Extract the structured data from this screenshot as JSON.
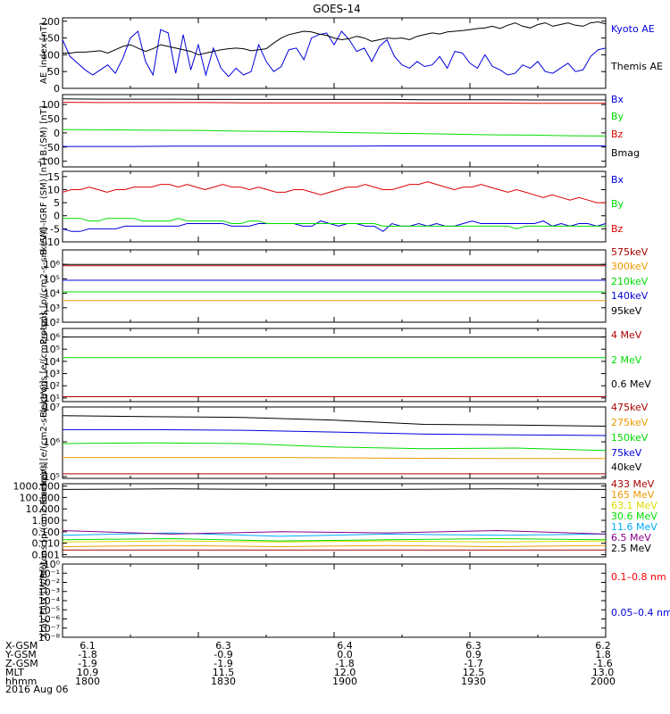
{
  "title": "GOES-14",
  "colors": {
    "black": "#000000",
    "blue": "#0000dd",
    "green": "#00dd00",
    "red": "#dd0000",
    "darkred": "#aa0000",
    "orange": "#ee9900",
    "yellow": "#dddd00",
    "cyan": "#00aaff",
    "purple": "#880088",
    "brightred": "#ff0000"
  },
  "chart_data": {
    "type": "line",
    "title": "GOES-14",
    "time_axis": {
      "ticks": [
        "1800",
        "1830",
        "1900",
        "1930",
        "2000"
      ],
      "range": [
        1800,
        2000
      ]
    },
    "orbit_table": {
      "date": "2016 Aug 06",
      "rows": [
        {
          "label": "X-GSM",
          "values": [
            "6.1",
            "6.3",
            "6.4",
            "6.3",
            "6.2"
          ]
        },
        {
          "label": "Y-GSM",
          "values": [
            "-1.8",
            "-0.9",
            "0.0",
            "0.9",
            "1.8"
          ]
        },
        {
          "label": "Z-GSM",
          "values": [
            "-1.9",
            "-1.9",
            "-1.8",
            "-1.7",
            "-1.6"
          ]
        },
        {
          "label": "MLT",
          "values": [
            "10.9",
            "11.5",
            "12.0",
            "12.5",
            "13.0"
          ]
        },
        {
          "label": "hhmm",
          "values": [
            "1800",
            "1830",
            "1900",
            "1930",
            "2000"
          ]
        }
      ]
    },
    "panels": [
      {
        "ylabel": "AE_index [nT]",
        "scale": "linear",
        "ylim": [
          0,
          210
        ],
        "ticks": [
          0,
          50,
          100,
          150,
          200
        ],
        "tick_labels": [
          "0",
          "50",
          "100",
          "150",
          "200"
        ],
        "series": [
          {
            "name": "Kyoto AE",
            "color": "blue",
            "values": [
              145,
              95,
              75,
              55,
              40,
              55,
              70,
              45,
              90,
              150,
              170,
              80,
              40,
              175,
              165,
              45,
              160,
              55,
              130,
              40,
              120,
              60,
              35,
              60,
              40,
              50,
              130,
              80,
              50,
              65,
              115,
              120,
              85,
              150,
              160,
              165,
              130,
              170,
              145,
              110,
              120,
              80,
              125,
              145,
              95,
              70,
              60,
              80,
              65,
              70,
              95,
              60,
              110,
              105,
              75,
              60,
              100,
              65,
              55,
              40,
              45,
              70,
              60,
              80,
              50,
              45,
              60,
              75,
              50,
              55,
              95,
              115,
              120
            ]
          },
          {
            "name": "Themis AE",
            "color": "black",
            "values": [
              105,
              105,
              108,
              108,
              110,
              112,
              105,
              115,
              125,
              130,
              120,
              110,
              118,
              130,
              125,
              120,
              115,
              110,
              100,
              105,
              110,
              115,
              118,
              120,
              118,
              112,
              115,
              118,
              135,
              150,
              160,
              165,
              170,
              168,
              162,
              158,
              150,
              145,
              148,
              155,
              150,
              140,
              145,
              150,
              148,
              150,
              145,
              155,
              160,
              165,
              162,
              168,
              170,
              172,
              175,
              178,
              180,
              185,
              178,
              188,
              195,
              185,
              180,
              190,
              195,
              185,
              190,
              195,
              188,
              185,
              195,
              198,
              192
            ]
          }
        ]
      },
      {
        "ylabel": "B (SM) [nT]",
        "scale": "linear",
        "ylim": [
          -120,
          135
        ],
        "ticks": [
          -100,
          -50,
          0,
          50,
          100
        ],
        "tick_labels": [
          "-100",
          "-50",
          "0",
          "50",
          "100"
        ],
        "series": [
          {
            "name": "Bx",
            "color": "blue",
            "values": [
              -48,
              -48,
              -48,
              -47,
              -47,
              -47,
              -47,
              -47,
              -47,
              -46,
              -46,
              -46,
              -46,
              -46,
              -46,
              -46
            ]
          },
          {
            "name": "By",
            "color": "green",
            "values": [
              12,
              11,
              10,
              9,
              8,
              6,
              5,
              3,
              1,
              -1,
              -3,
              -5,
              -7,
              -8,
              -10,
              -11
            ]
          },
          {
            "name": "Bz",
            "color": "red",
            "values": [
              108,
              107,
              107,
              107,
              107,
              106,
              106,
              106,
              106,
              106,
              105,
              105,
              105,
              104,
              104,
              104
            ]
          },
          {
            "name": "Bmag",
            "color": "black",
            "values": [
              120,
              119,
              119,
              119,
              118,
              118,
              118,
              118,
              118,
              118,
              117,
              117,
              117,
              116,
              116,
              116
            ]
          }
        ]
      },
      {
        "ylabel": "B (SM)-IGRF (SM) [nT]",
        "scale": "linear",
        "ylim": [
          -10,
          17
        ],
        "ticks": [
          -10,
          -5,
          0,
          5,
          10,
          15
        ],
        "tick_labels": [
          "-10",
          "-5",
          "0",
          "5",
          "10",
          "15"
        ],
        "series": [
          {
            "name": "Bx",
            "color": "blue",
            "values": [
              -5,
              -6,
              -6,
              -5,
              -5,
              -5,
              -5,
              -4,
              -4,
              -4,
              -4,
              -4,
              -4,
              -4,
              -3,
              -3,
              -3,
              -3,
              -3,
              -4,
              -4,
              -4,
              -3,
              -3,
              -3,
              -3,
              -3,
              -4,
              -4,
              -2,
              -3,
              -4,
              -3,
              -3,
              -4,
              -4,
              -6,
              -3,
              -4,
              -4,
              -3,
              -4,
              -3,
              -4,
              -4,
              -3,
              -2,
              -3,
              -3,
              -3,
              -3,
              -3,
              -3,
              -3,
              -2,
              -4,
              -3,
              -4,
              -3,
              -3,
              -4,
              -3
            ]
          },
          {
            "name": "By",
            "color": "green",
            "values": [
              -1,
              -1,
              -1,
              -2,
              -2,
              -1,
              -1,
              -1,
              -1,
              -2,
              -2,
              -2,
              -2,
              -1,
              -2,
              -2,
              -2,
              -2,
              -2,
              -3,
              -3,
              -2,
              -2,
              -3,
              -3,
              -3,
              -3,
              -3,
              -3,
              -3,
              -3,
              -3,
              -3,
              -3,
              -3,
              -3,
              -4,
              -4,
              -4,
              -4,
              -4,
              -4,
              -4,
              -4,
              -4,
              -4,
              -4,
              -4,
              -4,
              -4,
              -4,
              -5,
              -4,
              -4,
              -4,
              -4,
              -4,
              -4,
              -4,
              -4,
              -4,
              -4
            ]
          },
          {
            "name": "Bz",
            "color": "red",
            "values": [
              9,
              10,
              10,
              11,
              10,
              9,
              10,
              10,
              11,
              11,
              11,
              12,
              12,
              11,
              12,
              11,
              10,
              11,
              12,
              11,
              11,
              10,
              11,
              10,
              9,
              9,
              10,
              10,
              9,
              8,
              9,
              10,
              11,
              11,
              12,
              11,
              10,
              10,
              11,
              12,
              12,
              13,
              12,
              11,
              10,
              11,
              11,
              12,
              11,
              10,
              9,
              10,
              9,
              8,
              7,
              8,
              7,
              6,
              7,
              6,
              5,
              5
            ]
          }
        ]
      },
      {
        "ylabel": "Protons [p/(cm2-s-sr-keV)]",
        "scale": "log",
        "ylim": [
          2,
          7
        ],
        "ticks": [
          2,
          3,
          4,
          5,
          6
        ],
        "tick_labels": [
          "10²",
          "10³",
          "10⁴",
          "10⁵",
          "10⁶"
        ],
        "series": [
          {
            "name": "575keV",
            "color": "darkred",
            "values": [
              5.9,
              5.9,
              5.9,
              5.9,
              5.9,
              5.9
            ]
          },
          {
            "name": "300keV",
            "color": "orange",
            "values": [
              3.5,
              3.5,
              3.5,
              3.5,
              3.5,
              3.5
            ]
          },
          {
            "name": "210keV",
            "color": "green",
            "values": [
              4.1,
              4.1,
              4.1,
              4.1,
              4.1,
              4.1
            ]
          },
          {
            "name": "140keV",
            "color": "blue",
            "values": [
              4.9,
              4.9,
              4.9,
              4.9,
              4.9,
              4.9
            ]
          },
          {
            "name": "95keV",
            "color": "black",
            "values": [
              6.0,
              6.0,
              6.0,
              6.0,
              6.0,
              6.0
            ]
          }
        ]
      },
      {
        "ylabel": "Electrons [e/(cm2-s-sr)]",
        "scale": "log",
        "ylim": [
          0.7,
          6.7
        ],
        "ticks": [
          1,
          2,
          3,
          4,
          5,
          6
        ],
        "tick_labels": [
          "10¹",
          "10²",
          "10³",
          "10⁴",
          "10⁵",
          "10⁶"
        ],
        "series": [
          {
            "name": "4 MeV",
            "color": "darkred",
            "values": [
              1.1,
              1.1,
              1.1,
              1.1,
              1.1,
              1.1
            ]
          },
          {
            "name": "2 MeV",
            "color": "green",
            "values": [
              4.3,
              4.3,
              4.3,
              4.3,
              4.3,
              4.3
            ]
          },
          {
            "name": "0.6 MeV",
            "color": "black",
            "values": [
              6.0,
              6.0,
              6.0,
              6.0,
              6.0,
              6.0
            ]
          }
        ]
      },
      {
        "ylabel": "Electrons [e/(cm2-s-sr-keV)]",
        "scale": "log",
        "ylim": [
          4.95,
          7
        ],
        "ticks": [
          5,
          6,
          7
        ],
        "tick_labels": [
          "10⁵",
          "10⁶",
          "10⁷"
        ],
        "series": [
          {
            "name": "475keV",
            "color": "darkred",
            "values": [
              5.08,
              5.08,
              5.08,
              5.08,
              5.08,
              5.08
            ]
          },
          {
            "name": "275keV",
            "color": "orange",
            "values": [
              5.55,
              5.55,
              5.55,
              5.53,
              5.52,
              5.52
            ]
          },
          {
            "name": "150keV",
            "color": "green",
            "values": [
              5.95,
              5.97,
              5.95,
              5.85,
              5.8,
              5.82,
              5.75
            ]
          },
          {
            "name": "75keV",
            "color": "blue",
            "values": [
              6.35,
              6.35,
              6.33,
              6.28,
              6.22,
              6.2,
              6.18
            ]
          },
          {
            "name": "40keV",
            "color": "black",
            "values": [
              6.75,
              6.72,
              6.7,
              6.62,
              6.5,
              6.48,
              6.45
            ]
          }
        ]
      },
      {
        "ylabel": "Protons [p/(cm2-s-sr-keV)]",
        "scale": "log",
        "ylim": [
          -3.2,
          3.2
        ],
        "ticks": [
          -3,
          -2,
          -1,
          0,
          1,
          2,
          3
        ],
        "tick_labels": [
          "0.001",
          "0.010",
          "0.100",
          "1.000",
          "10.000",
          "100.000",
          "1000.000"
        ],
        "series": [
          {
            "name": "433 MeV",
            "color": "darkred",
            "values": [
              -2.6,
              -2.6,
              -2.6,
              -2.6,
              -2.6,
              -2.6
            ]
          },
          {
            "name": "165 MeV",
            "color": "orange",
            "values": [
              -2.3,
              -2.2,
              -2.3,
              -2.2,
              -2.3,
              -2.2
            ]
          },
          {
            "name": "63.1 MeV",
            "color": "yellow",
            "values": [
              -1.9,
              -1.8,
              -1.9,
              -1.8,
              -1.9,
              -1.8
            ]
          },
          {
            "name": "30.6 MeV",
            "color": "green",
            "values": [
              -1.7,
              -1.6,
              -1.8,
              -1.7,
              -1.6,
              -1.7
            ]
          },
          {
            "name": "11.6 MeV",
            "color": "cyan",
            "values": [
              -1.3,
              -1.1,
              -1.4,
              -1.2,
              -1.3,
              -1.2
            ]
          },
          {
            "name": "6.5 MeV",
            "color": "purple",
            "values": [
              -0.9,
              -1.2,
              -1.0,
              -1.1,
              -0.9,
              -1.2
            ]
          },
          {
            "name": "2.5 MeV",
            "color": "black",
            "values": [
              2.7,
              2.75,
              2.7,
              2.7,
              2.75,
              2.7
            ]
          }
        ]
      },
      {
        "ylabel": "Xray Flux [W/m²]",
        "scale": "log",
        "ylim": [
          -8,
          0
        ],
        "ticks": [
          -8,
          -7,
          -6,
          -5,
          -4,
          -3,
          -2,
          -1,
          0
        ],
        "tick_labels": [
          "10⁻⁸",
          "10⁻⁷",
          "10⁻⁶",
          "10⁻⁵",
          "10⁻⁴",
          "10⁻³",
          "10⁻²",
          "10⁻¹",
          "10⁰"
        ],
        "series": [
          {
            "name": "0.1–0.8 nm",
            "color": "brightred",
            "values": []
          },
          {
            "name": "0.05–0.4 nm",
            "color": "blue",
            "values": []
          }
        ]
      }
    ]
  }
}
